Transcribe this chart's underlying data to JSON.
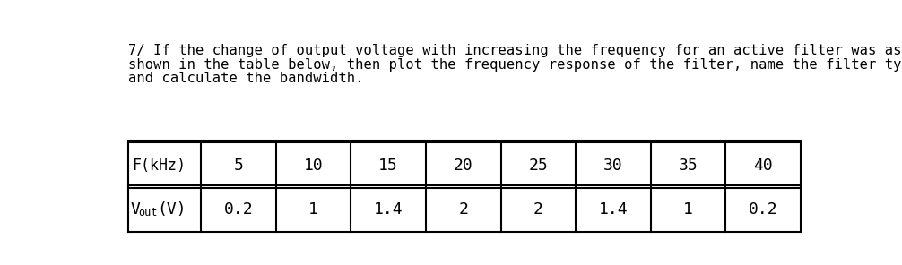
{
  "title_line1": "7/ If the change of output voltage with increasing the frequency for an active filter was as",
  "title_line2": "shown in the table below, then plot the frequency response of the filter, name the filter type",
  "title_line3": "and calculate the bandwidth.",
  "freq_label": "F(kHz)",
  "freq_values": [
    5,
    10,
    15,
    20,
    25,
    30,
    35,
    40
  ],
  "vout_values": [
    "0.2",
    "1",
    "1.4",
    "2",
    "2",
    "1.4",
    "1",
    "0.2"
  ],
  "bg_color": "#ffffff",
  "text_color": "#000000",
  "table_border_color": "#000000"
}
